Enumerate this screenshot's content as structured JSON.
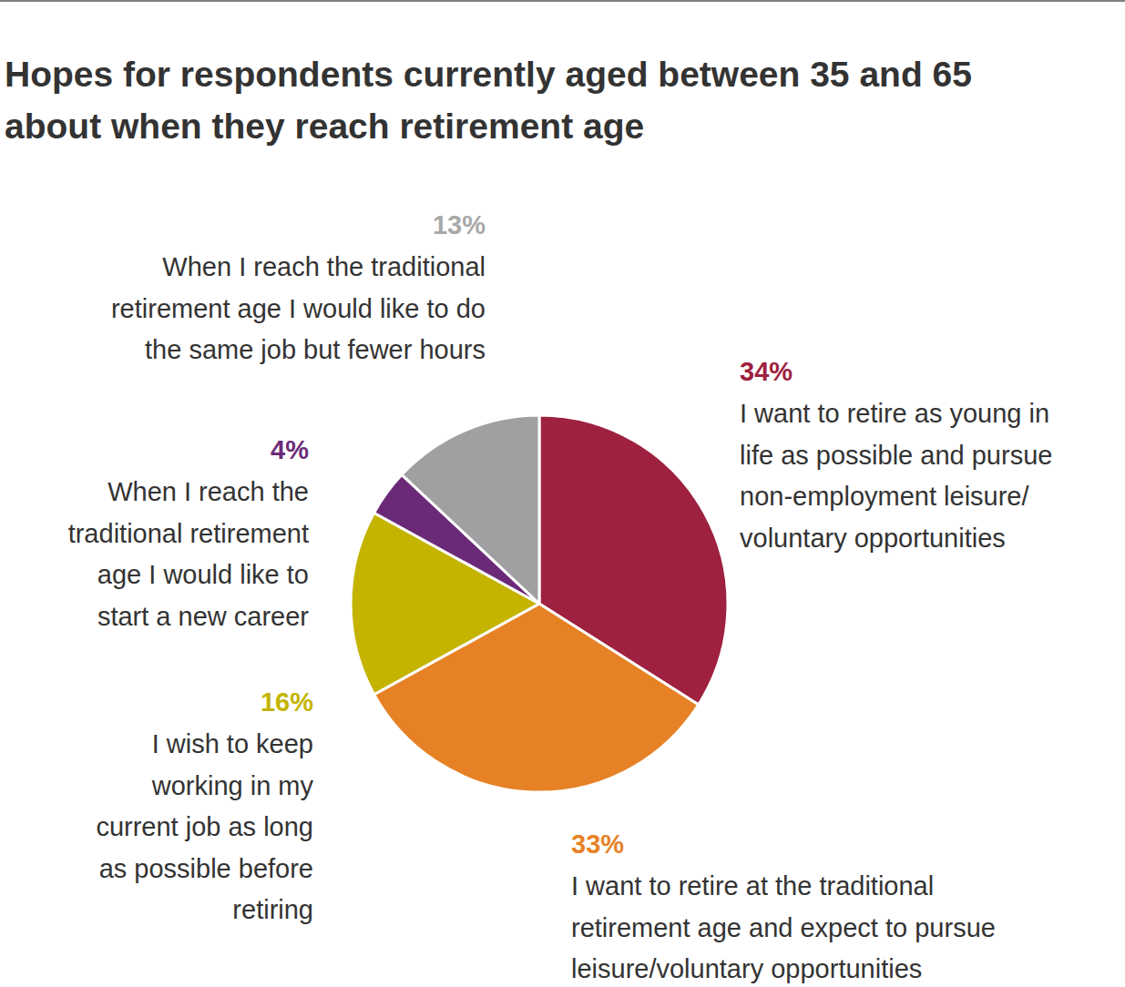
{
  "chart_data": {
    "type": "pie",
    "title": "Hopes for respondents currently aged between 35 and 65 about when they reach retirement age",
    "categories": [
      "I want to retire as young in life as possible and pursue non-employment leisure/voluntary opportunities",
      "I want to retire at the traditional retirement age and expect to pursue leisure/voluntary opportunities",
      "I wish to keep working in my current job as long as possible before retiring",
      "When I reach the traditional retirement age I would like to start a new career",
      "When I reach the traditional retirement age I would like to do the same job but fewer hours"
    ],
    "values": [
      34,
      33,
      16,
      4,
      13
    ],
    "value_labels": [
      "34%",
      "33%",
      "16%",
      "4%",
      "13%"
    ],
    "colors": [
      "#9e2140",
      "#e68225",
      "#c4b400",
      "#6b2a78",
      "#a0a0a2"
    ],
    "data_labels": true
  }
}
